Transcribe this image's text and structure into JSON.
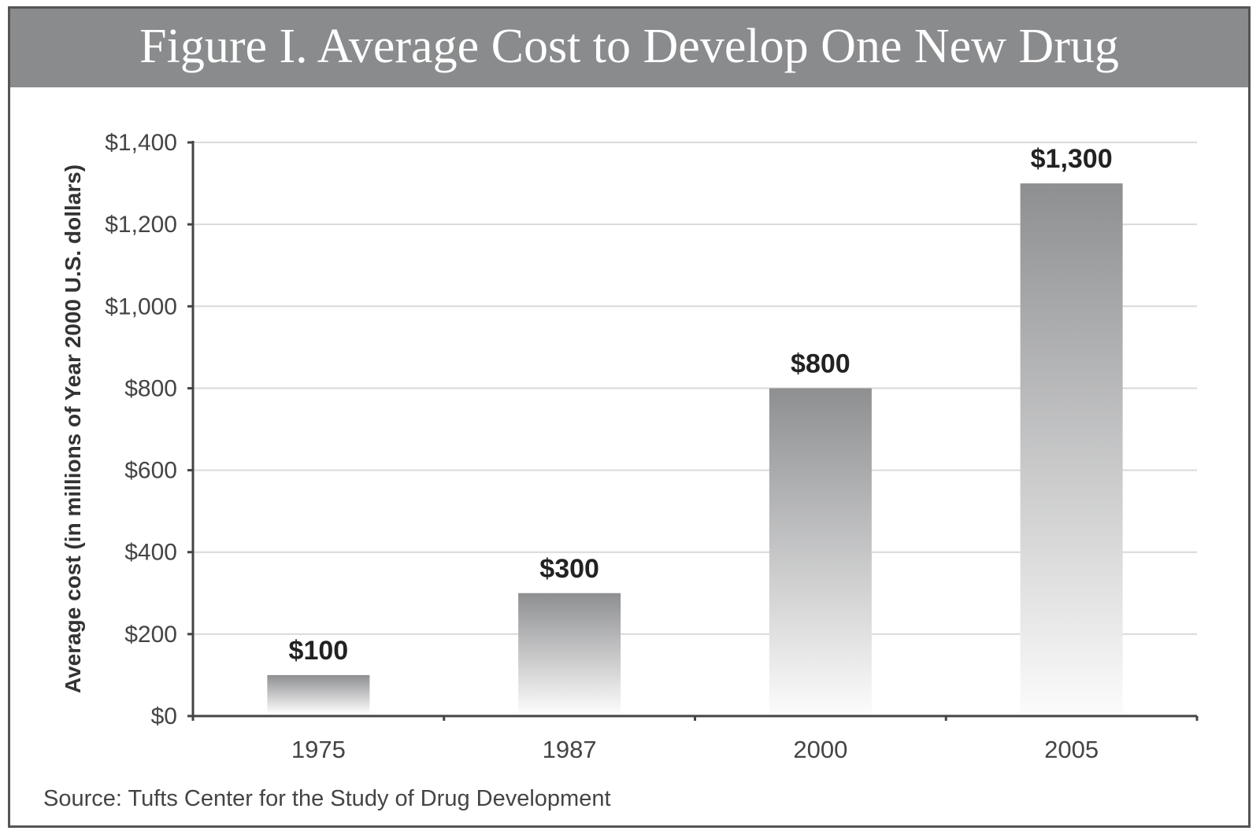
{
  "chart_data": {
    "type": "bar",
    "title": "Figure I. Average Cost to Develop One New Drug",
    "categories": [
      "1975",
      "1987",
      "2000",
      "2005"
    ],
    "values": [
      100,
      300,
      800,
      1300
    ],
    "data_labels": [
      "$100",
      "$300",
      "$800",
      "$1,300"
    ],
    "xlabel": "",
    "ylabel": "Average cost (in millions of Year 2000 U.S. dollars)",
    "ylim": [
      0,
      1400
    ],
    "yticks": [
      0,
      200,
      400,
      600,
      800,
      1000,
      1200,
      1400
    ],
    "ytick_labels": [
      "$0",
      "$200",
      "$400",
      "$600",
      "$800",
      "$1,000",
      "$1,200",
      "$1,400"
    ],
    "grid": true,
    "bar_color": "#8e8f91",
    "title_bar_color": "#8a8b8d",
    "source": "Source: Tufts Center for the Study of Drug Development"
  }
}
